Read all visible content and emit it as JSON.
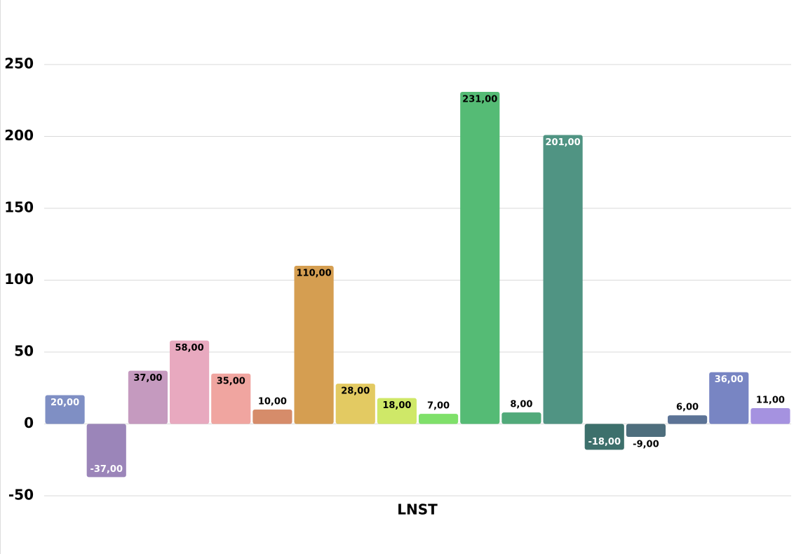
{
  "chart_data": {
    "type": "bar",
    "x_label": "LNST",
    "categories": [
      "LNST"
    ],
    "series": [
      {
        "color": "#7f8fc4",
        "values": [
          20
        ],
        "value_labels": [
          "20,00"
        ]
      },
      {
        "color": "#9b85b9",
        "values": [
          -37
        ],
        "value_labels": [
          "-37,00"
        ]
      },
      {
        "color": "#c59abf",
        "values": [
          37
        ],
        "value_labels": [
          "37,00"
        ]
      },
      {
        "color": "#e8a9bf",
        "values": [
          58
        ],
        "value_labels": [
          "58,00"
        ]
      },
      {
        "color": "#f0a5a0",
        "values": [
          35
        ],
        "value_labels": [
          "35,00"
        ]
      },
      {
        "color": "#d68c6a",
        "values": [
          10
        ],
        "value_labels": [
          "10,00"
        ]
      },
      {
        "color": "#d59e51",
        "values": [
          110
        ],
        "value_labels": [
          "110,00"
        ]
      },
      {
        "color": "#e3ca62",
        "values": [
          28
        ],
        "value_labels": [
          "28,00"
        ]
      },
      {
        "color": "#cfe868",
        "values": [
          18
        ],
        "value_labels": [
          "18,00"
        ]
      },
      {
        "color": "#7fe06a",
        "values": [
          7
        ],
        "value_labels": [
          "7,00"
        ]
      },
      {
        "color": "#55bb75",
        "values": [
          231
        ],
        "value_labels": [
          "231,00"
        ]
      },
      {
        "color": "#51aa7a",
        "values": [
          8
        ],
        "value_labels": [
          "8,00"
        ]
      },
      {
        "color": "#509483",
        "values": [
          201
        ],
        "value_labels": [
          "201,00"
        ]
      },
      {
        "color": "#3d706c",
        "values": [
          -18
        ],
        "value_labels": [
          "-18,00"
        ]
      },
      {
        "color": "#4e6e7d",
        "values": [
          -9
        ],
        "value_labels": [
          "-9,00"
        ]
      },
      {
        "color": "#5c7396",
        "values": [
          6
        ],
        "value_labels": [
          "6,00"
        ]
      },
      {
        "color": "#7885c3",
        "values": [
          36
        ],
        "value_labels": [
          "36,00"
        ]
      },
      {
        "color": "#a592e0",
        "values": [
          11
        ],
        "value_labels": [
          "11,00"
        ]
      }
    ],
    "ylim": [
      -50,
      250
    ],
    "yticks": [
      -50,
      0,
      50,
      100,
      150,
      200,
      250
    ],
    "grid": true
  }
}
